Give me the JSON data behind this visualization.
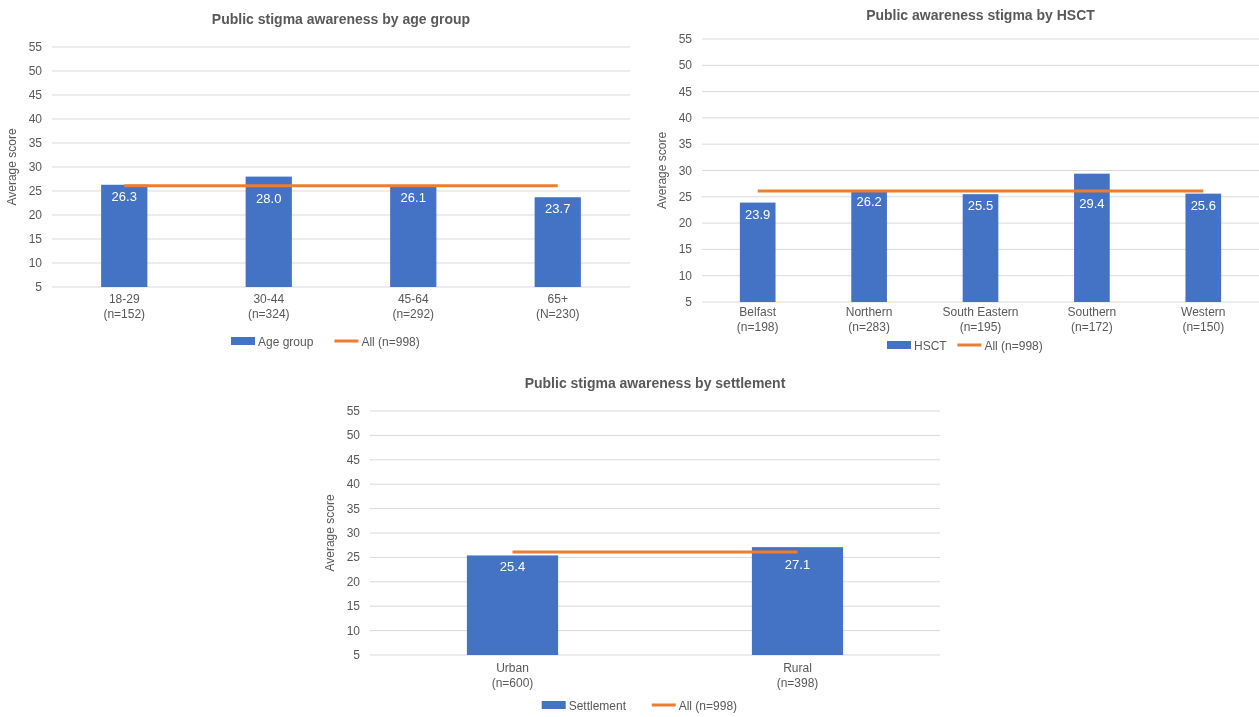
{
  "chart_data": [
    {
      "type": "bar",
      "title": "Public stigma awareness by age group",
      "ylabel": "Average score",
      "categories": [
        "18-29\n(n=152)",
        "30-44\n(n=324)",
        "45-64\n(n=292)",
        "65+\n(N=230)"
      ],
      "series": [
        {
          "name": "Age group",
          "color": "#4472c4",
          "values": [
            26.3,
            28.0,
            26.1,
            23.7
          ],
          "value_labels": [
            "26.3",
            "28.0",
            "26.1",
            "23.7"
          ]
        },
        {
          "name": "All (n=998)",
          "type": "line",
          "color": "#ed7d31",
          "values": [
            26.1,
            26.1,
            26.1,
            26.1
          ]
        }
      ],
      "ylim": [
        5,
        55
      ],
      "yticks": [
        5,
        10,
        15,
        20,
        25,
        30,
        35,
        40,
        45,
        50,
        55
      ],
      "grid": "y",
      "legend": "bottom"
    },
    {
      "type": "bar",
      "title": "Public awareness stigma by HSCT",
      "ylabel": "Average score",
      "categories": [
        "Belfast\n(n=198)",
        "Northern\n(n=283)",
        "South Eastern\n(n=195)",
        "Southern\n(n=172)",
        "Western\n(n=150)"
      ],
      "series": [
        {
          "name": "HSCT",
          "color": "#4472c4",
          "values": [
            23.9,
            26.2,
            25.5,
            29.4,
            25.6
          ],
          "value_labels": [
            "23.9",
            "26.2",
            "25.5",
            "29.4",
            "25.6"
          ]
        },
        {
          "name": "All (n=998)",
          "type": "line",
          "color": "#ed7d31",
          "values": [
            26.1,
            26.1,
            26.1,
            26.1,
            26.1
          ]
        }
      ],
      "ylim": [
        5,
        55
      ],
      "yticks": [
        5,
        10,
        15,
        20,
        25,
        30,
        35,
        40,
        45,
        50,
        55
      ],
      "grid": "y",
      "legend": "bottom"
    },
    {
      "type": "bar",
      "title": "Public stigma awareness by settlement",
      "ylabel": "Average score",
      "categories": [
        "Urban\n(n=600)",
        "Rural\n(n=398)"
      ],
      "series": [
        {
          "name": "Settlement",
          "color": "#4472c4",
          "values": [
            25.4,
            27.1
          ],
          "value_labels": [
            "25.4",
            "27.1"
          ]
        },
        {
          "name": "All (n=998)",
          "type": "line",
          "color": "#ed7d31",
          "values": [
            26.1,
            26.1
          ]
        }
      ],
      "ylim": [
        5,
        55
      ],
      "yticks": [
        5,
        10,
        15,
        20,
        25,
        30,
        35,
        40,
        45,
        50,
        55
      ],
      "grid": "y",
      "legend": "bottom"
    }
  ]
}
